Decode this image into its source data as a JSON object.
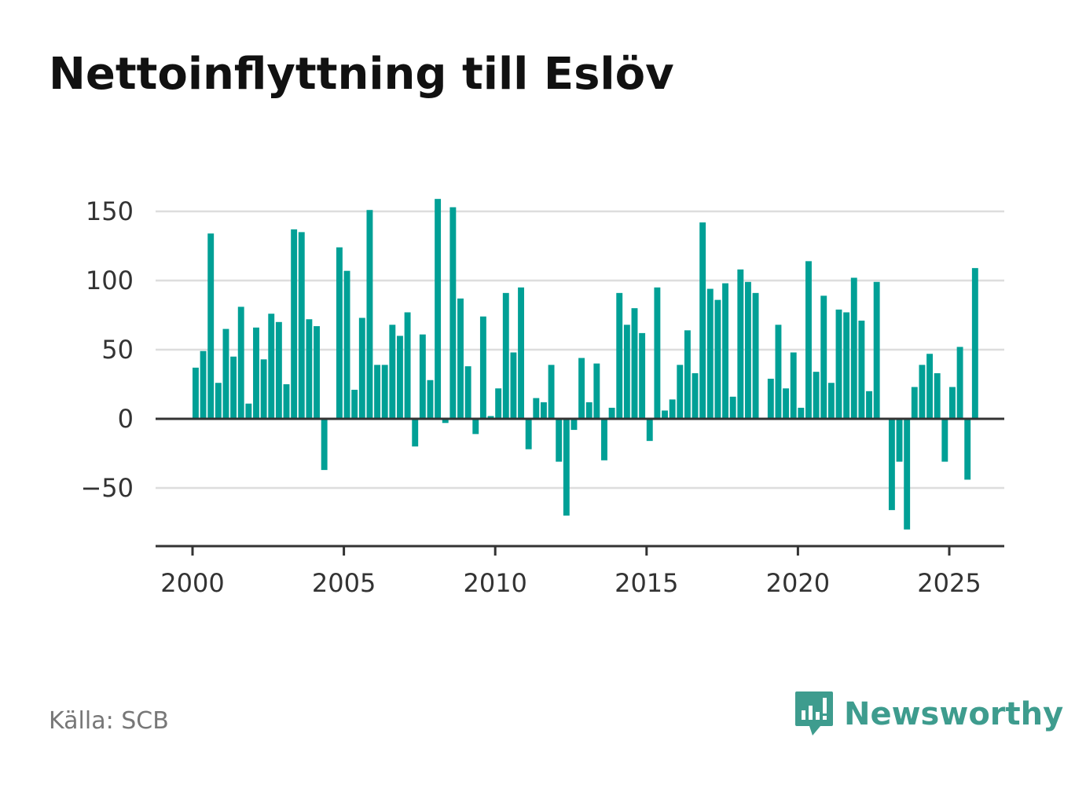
{
  "title": "Nettoinflyttning till Eslöv",
  "source": "Källa: SCB",
  "brand": {
    "name": "Newsworthy",
    "icon": "newsworthy-logo-icon",
    "color": "#3e9c8e"
  },
  "colors": {
    "bar": "#00a096",
    "grid": "#dddddd",
    "axis": "#333333",
    "text": "#333333"
  },
  "chart_data": {
    "type": "bar",
    "title": "Nettoinflyttning till Eslöv",
    "xlabel": "",
    "ylabel": "",
    "frequency": "quarterly",
    "start": "2000 Q1",
    "ylim": [
      -92,
      160
    ],
    "xlim": [
      1999.75,
      2026.75
    ],
    "yticks": [
      -50,
      0,
      50,
      100,
      150
    ],
    "ytick_labels": [
      "−50",
      "0",
      "50",
      "100",
      "150"
    ],
    "xticks": [
      2000,
      2005,
      2010,
      2015,
      2020,
      2025
    ],
    "grid": true,
    "legend": "none",
    "values": [
      37,
      49,
      134,
      26,
      65,
      45,
      81,
      11,
      66,
      43,
      76,
      70,
      25,
      137,
      135,
      72,
      67,
      -37,
      0,
      124,
      107,
      21,
      73,
      151,
      39,
      39,
      68,
      60,
      77,
      -20,
      61,
      28,
      159,
      -3,
      153,
      87,
      38,
      -11,
      74,
      2,
      22,
      91,
      48,
      95,
      -22,
      15,
      12,
      39,
      -31,
      -70,
      -8,
      44,
      12,
      40,
      -30,
      8,
      91,
      68,
      80,
      62,
      -16,
      95,
      6,
      14,
      39,
      64,
      33,
      142,
      94,
      86,
      98,
      16,
      108,
      99,
      91,
      0,
      29,
      68,
      22,
      48,
      8,
      114,
      34,
      89,
      26,
      79,
      77,
      102,
      71,
      20,
      99,
      0,
      -66,
      -31,
      -80,
      23,
      39,
      47,
      33,
      -31,
      23,
      52,
      -44,
      109
    ]
  }
}
